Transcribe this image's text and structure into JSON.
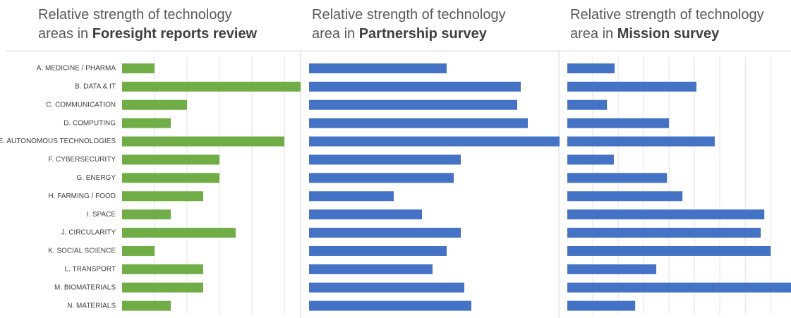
{
  "chart_data": [
    {
      "type": "bar",
      "orientation": "horizontal",
      "title_plain": "Relative strength of technology areas in",
      "title_bold": "Foresight reports review",
      "categories": [
        "A. MEDICINE / PHARMA",
        "B. DATA & IT",
        "C. COMMUNICATION",
        "D. COMPUTING",
        "E. AUTONOMOUS TECHNOLOGIES",
        "F. CYBERSECURITY",
        "G. ENERGY",
        "H. FARMING / FOOD",
        "I. SPACE",
        "J. CIRCULARITY",
        "K. SOCIAL SCIENCE",
        "L. TRANSPORT",
        "M. BIOMATERIALS",
        "N. MATERIALS"
      ],
      "values": [
        1,
        5.5,
        2,
        1.5,
        5,
        3,
        3,
        2.5,
        1.5,
        3.5,
        1,
        2.5,
        2.5,
        1.5
      ],
      "color": "#70ad47",
      "xlim": [
        0,
        5.5
      ],
      "xticks": [
        1,
        2,
        3,
        4,
        5
      ],
      "grid": true
    },
    {
      "type": "bar",
      "orientation": "horizontal",
      "title_plain": "Relative strength of technology area in",
      "title_bold": "Partnership survey",
      "values": [
        3.9,
        6.0,
        5.9,
        6.2,
        7.1,
        4.3,
        4.1,
        2.4,
        3.2,
        4.3,
        3.9,
        3.5,
        4.4,
        4.6
      ],
      "color": "#4472c4",
      "xlim": [
        0,
        7.1
      ],
      "grid": false
    },
    {
      "type": "bar",
      "orientation": "horizontal",
      "title_plain": "Relative strength of technology area in",
      "title_bold": "Mission survey",
      "values": [
        1.86,
        5.08,
        1.56,
        4,
        5.8,
        1.83,
        3.92,
        4.53,
        7.75,
        7.61,
        8,
        3.5,
        8.8,
        2.67
      ],
      "color": "#4472c4",
      "xlim": [
        0,
        8.8
      ],
      "xticks": [
        1,
        2,
        3,
        4,
        5,
        6,
        7,
        8
      ],
      "grid": true
    }
  ]
}
